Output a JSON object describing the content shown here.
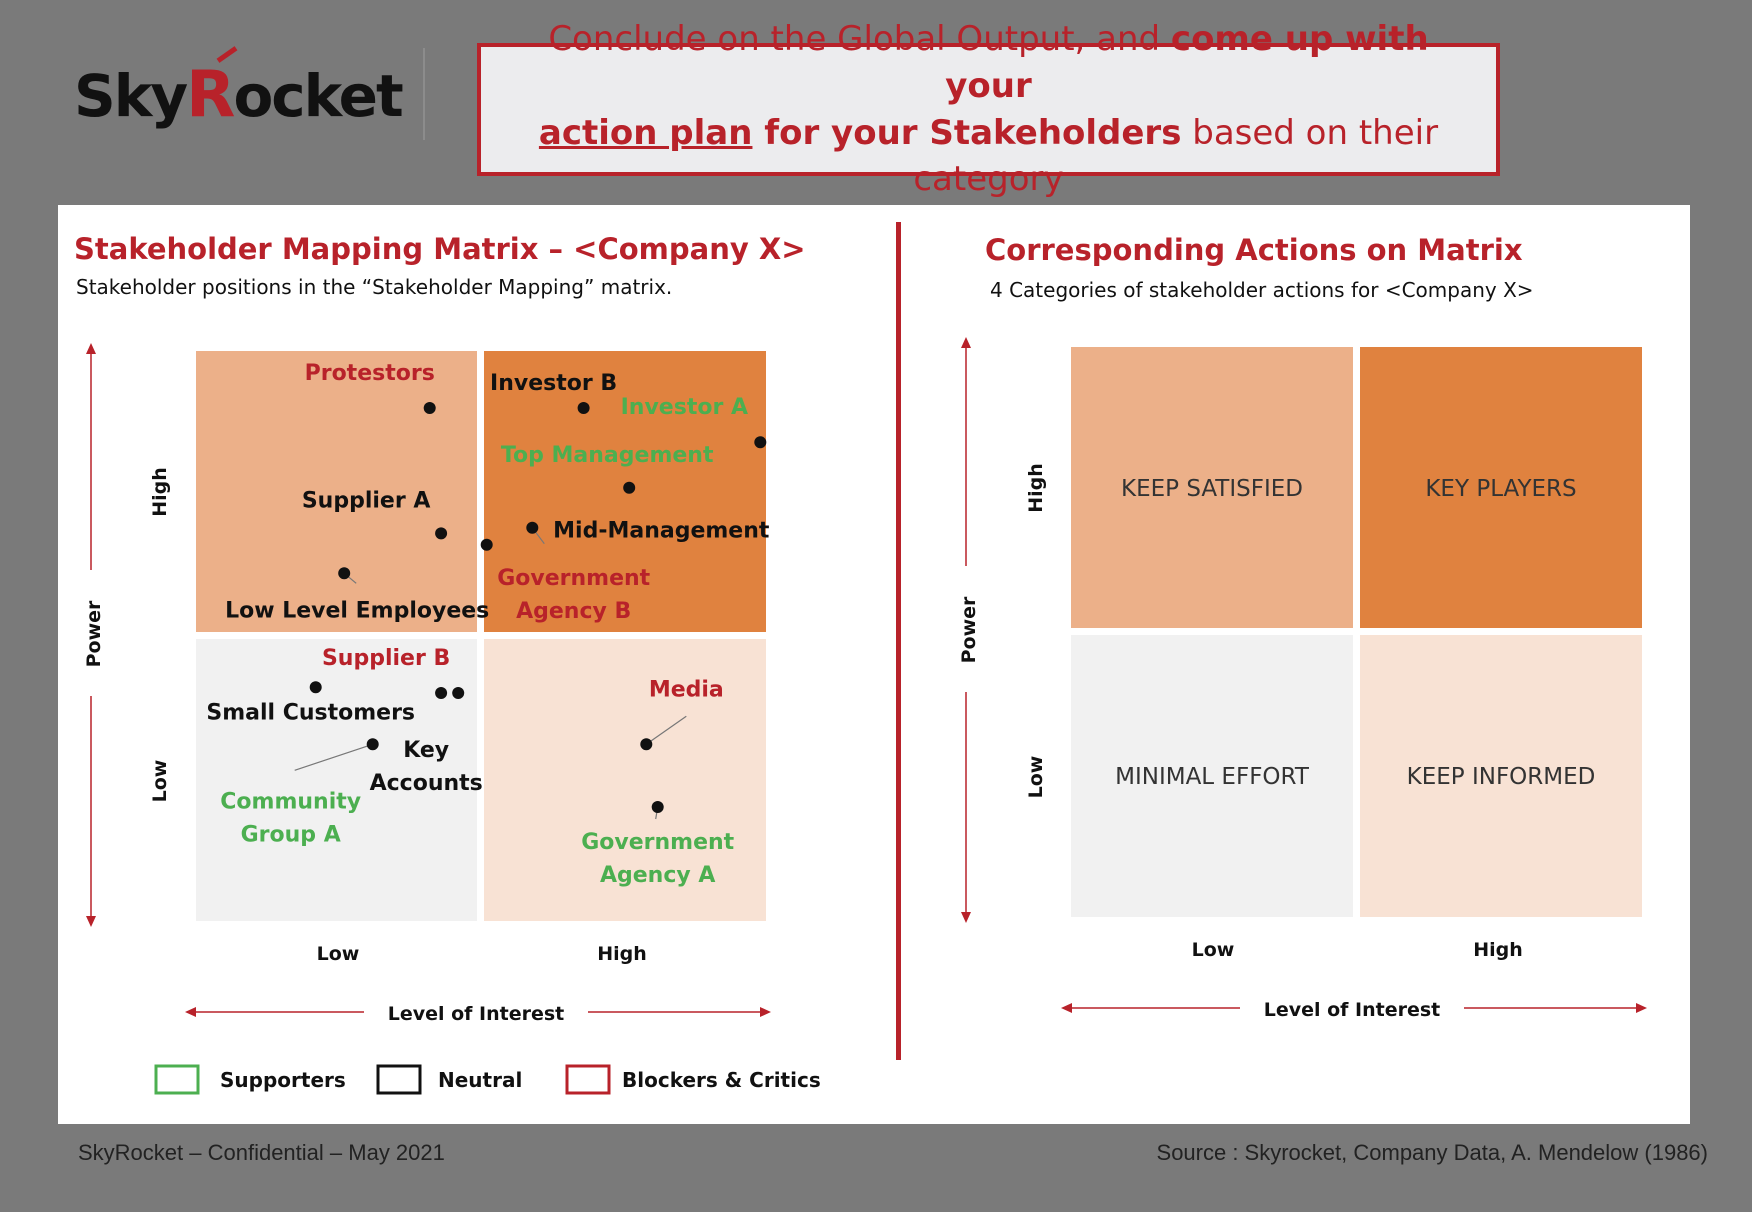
{
  "logo": {
    "text_a": "Sky",
    "text_r": "R",
    "text_b": "ocket"
  },
  "headline": {
    "part1": "Conclude on the Global Output, and ",
    "part2": "come up with your",
    "part3": "action plan",
    "part4": " for your Stakeholders",
    "part5": " based on their category"
  },
  "left": {
    "title": "Stakeholder Mapping Matrix – <Company X>",
    "subtitle": "Stakeholder positions in the “Stakeholder Mapping” matrix."
  },
  "right": {
    "title": "Corresponding Actions on Matrix",
    "subtitle": "4 Categories of stakeholder actions for <Company X>"
  },
  "axes": {
    "y_title": "Power",
    "y_high": "High",
    "y_low": "Low",
    "x_title": "Level of Interest",
    "x_low": "Low",
    "x_high": "High"
  },
  "legend": [
    {
      "label": "Supporters",
      "color": "#4caf50"
    },
    {
      "label": "Neutral",
      "color": "#111111"
    },
    {
      "label": "Blockers & Critics",
      "color": "#b8222a"
    }
  ],
  "colors": {
    "q_top_left": "#ecb089",
    "q_top_right": "#e0823f",
    "q_bottom_left": "#f1f1f1",
    "q_bottom_right": "#f8e2d4",
    "supporter": "#4caf50",
    "neutral": "#111111",
    "blocker": "#b8222a"
  },
  "chart_data": [
    {
      "type": "scatter",
      "title": "Stakeholder Mapping Matrix – <Company X>",
      "xlabel": "Level of Interest",
      "ylabel": "Power",
      "x_categories": [
        "Low",
        "High"
      ],
      "y_categories": [
        "Low",
        "High"
      ],
      "points": [
        {
          "name": "Protestors",
          "group": "blocker",
          "interest": 0.41,
          "power": 0.9
        },
        {
          "name": "Investor B",
          "group": "neutral",
          "interest": 0.68,
          "power": 0.9
        },
        {
          "name": "Investor A",
          "group": "supporter",
          "interest": 0.99,
          "power": 0.84
        },
        {
          "name": "Top Management",
          "group": "supporter",
          "interest": 0.76,
          "power": 0.76
        },
        {
          "name": "Supplier A",
          "group": "neutral",
          "interest": 0.43,
          "power": 0.68
        },
        {
          "name": "Mid-Management",
          "group": "neutral",
          "interest": 0.59,
          "power": 0.69
        },
        {
          "name": "Government Agency B",
          "group": "blocker",
          "interest": 0.51,
          "power": 0.66
        },
        {
          "name": "Low Level Employees",
          "group": "neutral",
          "interest": 0.26,
          "power": 0.61
        },
        {
          "name": "Small Customers",
          "group": "neutral",
          "interest": 0.21,
          "power": 0.41
        },
        {
          "name": "Supplier B",
          "group": "blocker",
          "interest": 0.43,
          "power": 0.4
        },
        {
          "name": "Key Accounts",
          "group": "neutral",
          "interest": 0.46,
          "power": 0.4
        },
        {
          "name": "Community Group A",
          "group": "supporter",
          "interest": 0.31,
          "power": 0.31
        },
        {
          "name": "Media",
          "group": "blocker",
          "interest": 0.79,
          "power": 0.31
        },
        {
          "name": "Government Agency A",
          "group": "supporter",
          "interest": 0.81,
          "power": 0.2
        }
      ]
    },
    {
      "type": "table",
      "title": "Corresponding Actions on Matrix",
      "xlabel": "Level of Interest",
      "ylabel": "Power",
      "quadrants": [
        {
          "position": "top-left",
          "label": "KEEP SATISFIED"
        },
        {
          "position": "top-right",
          "label": "KEY PLAYERS"
        },
        {
          "position": "bottom-left",
          "label": "MINIMAL EFFORT"
        },
        {
          "position": "bottom-right",
          "label": "KEEP INFORMED"
        }
      ]
    }
  ],
  "footer": {
    "left": "SkyRocket – Confidential – May 2021",
    "right": "Source : Skyrocket, Company Data, A. Mendelow (1986)"
  }
}
